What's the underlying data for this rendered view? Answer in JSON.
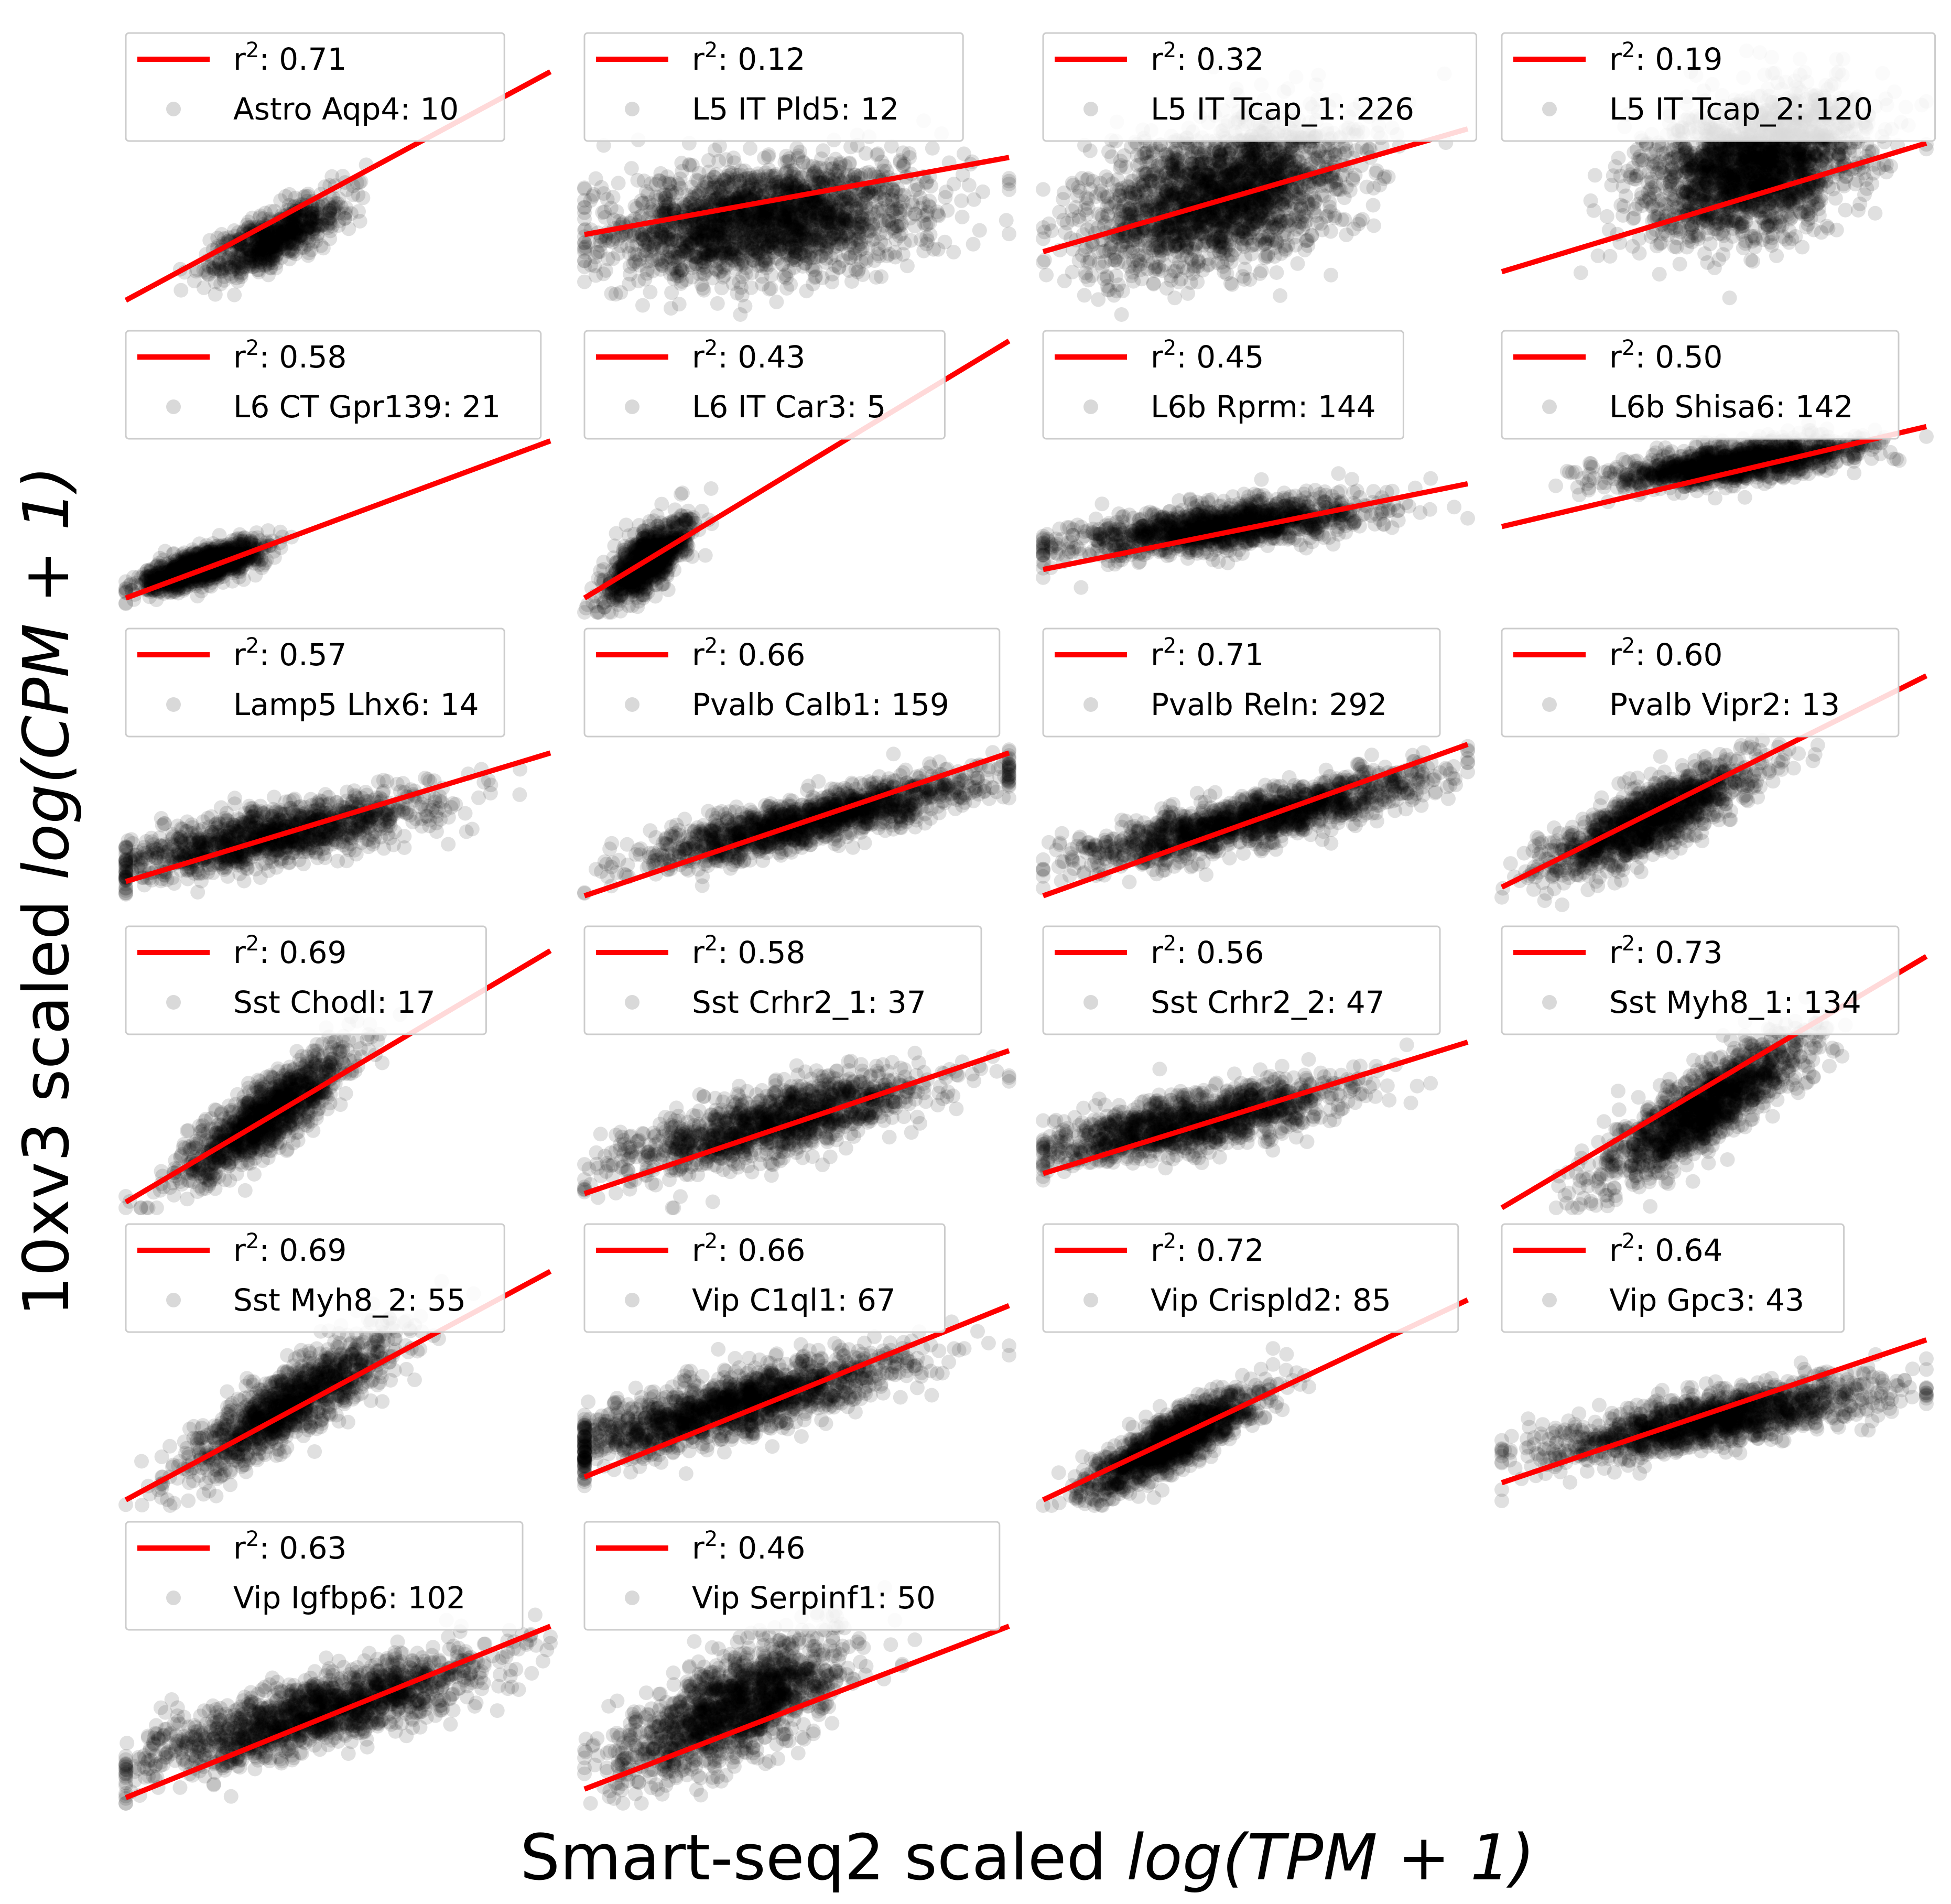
{
  "figure": {
    "xlabel_main": "Smart-seq2 scaled ",
    "xlabel_math": "log(TPM + 1)",
    "ylabel_main": "10xv3 scaled ",
    "ylabel_math": "log(CPM + 1)",
    "line_color": "#ff0000",
    "point_color": "#000000",
    "point_alpha": 0.12
  },
  "chart_data": [
    {
      "type": "scatter",
      "cell_type": "Astro Aqp4",
      "n": "10",
      "r2": "0.71",
      "legend_label": "Astro Aqp4: 10",
      "fit_line": {
        "y_start": 0.05,
        "y_end": 0.85
      },
      "cloud": {
        "cx": 0.35,
        "cy": 0.27,
        "sx": 0.08,
        "sy": 0.07,
        "rho": 0.75,
        "count": 700
      }
    },
    {
      "type": "scatter",
      "cell_type": "L5 IT Pld5",
      "n": "12",
      "r2": "0.12",
      "legend_label": "L5 IT Pld5: 12",
      "fit_line": {
        "y_start": 0.28,
        "y_end": 0.55
      },
      "cloud": {
        "cx": 0.42,
        "cy": 0.33,
        "sx": 0.18,
        "sy": 0.1,
        "rho": 0.25,
        "count": 2200
      }
    },
    {
      "type": "scatter",
      "cell_type": "L5 IT Tcap_1",
      "n": "226",
      "r2": "0.32",
      "legend_label": "L5 IT Tcap_1: 226",
      "fit_line": {
        "y_start": 0.22,
        "y_end": 0.65
      },
      "cloud": {
        "cx": 0.42,
        "cy": 0.42,
        "sx": 0.15,
        "sy": 0.13,
        "rho": 0.4,
        "count": 2200
      }
    },
    {
      "type": "scatter",
      "cell_type": "L5 IT Tcap_2",
      "n": "120",
      "r2": "0.19",
      "legend_label": "L5 IT Tcap_2: 120",
      "fit_line": {
        "y_start": 0.15,
        "y_end": 0.6
      },
      "cloud": {
        "cx": 0.6,
        "cy": 0.52,
        "sx": 0.13,
        "sy": 0.13,
        "rho": 0.35,
        "count": 2200
      }
    },
    {
      "type": "scatter",
      "cell_type": "L6 CT Gpr139",
      "n": "21",
      "r2": "0.58",
      "legend_label": "L6 CT Gpr139: 21",
      "fit_line": {
        "y_start": 0.05,
        "y_end": 0.6
      },
      "cloud": {
        "cx": 0.18,
        "cy": 0.16,
        "sx": 0.07,
        "sy": 0.04,
        "rho": 0.7,
        "count": 1200
      }
    },
    {
      "type": "scatter",
      "cell_type": "L6 IT Car3",
      "n": "5",
      "r2": "0.43",
      "legend_label": "L6 IT Car3: 5",
      "fit_line": {
        "y_start": 0.05,
        "y_end": 0.95
      },
      "cloud": {
        "cx": 0.15,
        "cy": 0.18,
        "sx": 0.05,
        "sy": 0.07,
        "rho": 0.7,
        "count": 900
      }
    },
    {
      "type": "scatter",
      "cell_type": "L6b Rprm",
      "n": "144",
      "r2": "0.45",
      "legend_label": "L6b Rprm: 144",
      "fit_line": {
        "y_start": 0.15,
        "y_end": 0.45
      },
      "cloud": {
        "cx": 0.42,
        "cy": 0.3,
        "sx": 0.18,
        "sy": 0.05,
        "rho": 0.6,
        "count": 1400
      }
    },
    {
      "type": "scatter",
      "cell_type": "L6b Shisa6",
      "n": "142",
      "r2": "0.50",
      "legend_label": "L6b Shisa6: 142",
      "fit_line": {
        "y_start": 0.3,
        "y_end": 0.65
      },
      "cloud": {
        "cx": 0.55,
        "cy": 0.52,
        "sx": 0.14,
        "sy": 0.04,
        "rho": 0.6,
        "count": 1300
      }
    },
    {
      "type": "scatter",
      "cell_type": "Lamp5 Lhx6",
      "n": "14",
      "r2": "0.57",
      "legend_label": "Lamp5 Lhx6: 14",
      "fit_line": {
        "y_start": 0.1,
        "y_end": 0.55
      },
      "cloud": {
        "cx": 0.35,
        "cy": 0.26,
        "sx": 0.18,
        "sy": 0.07,
        "rho": 0.7,
        "count": 1300
      }
    },
    {
      "type": "scatter",
      "cell_type": "Pvalb Calb1",
      "n": "159",
      "r2": "0.66",
      "legend_label": "Pvalb Calb1: 159",
      "fit_line": {
        "y_start": 0.05,
        "y_end": 0.55
      },
      "cloud": {
        "cx": 0.55,
        "cy": 0.32,
        "sx": 0.2,
        "sy": 0.08,
        "rho": 0.85,
        "count": 1500
      }
    },
    {
      "type": "scatter",
      "cell_type": "Pvalb Reln",
      "n": "292",
      "r2": "0.71",
      "legend_label": "Pvalb Reln: 292",
      "fit_line": {
        "y_start": 0.05,
        "y_end": 0.58
      },
      "cloud": {
        "cx": 0.5,
        "cy": 0.32,
        "sx": 0.2,
        "sy": 0.08,
        "rho": 0.85,
        "count": 1500
      }
    },
    {
      "type": "scatter",
      "cell_type": "Pvalb Vipr2",
      "n": "13",
      "r2": "0.60",
      "legend_label": "Pvalb Vipr2: 13",
      "fit_line": {
        "y_start": 0.08,
        "y_end": 0.82
      },
      "cloud": {
        "cx": 0.35,
        "cy": 0.32,
        "sx": 0.12,
        "sy": 0.1,
        "rho": 0.8,
        "count": 1300
      }
    },
    {
      "type": "scatter",
      "cell_type": "Sst Chodl",
      "n": "17",
      "r2": "0.69",
      "legend_label": "Sst Chodl: 17",
      "fit_line": {
        "y_start": 0.02,
        "y_end": 0.9
      },
      "cloud": {
        "cx": 0.33,
        "cy": 0.32,
        "sx": 0.1,
        "sy": 0.12,
        "rho": 0.85,
        "count": 1200
      }
    },
    {
      "type": "scatter",
      "cell_type": "Sst Crhr2_1",
      "n": "37",
      "r2": "0.58",
      "legend_label": "Sst Crhr2_1: 37",
      "fit_line": {
        "y_start": 0.05,
        "y_end": 0.55
      },
      "cloud": {
        "cx": 0.45,
        "cy": 0.3,
        "sx": 0.18,
        "sy": 0.09,
        "rho": 0.75,
        "count": 1300
      }
    },
    {
      "type": "scatter",
      "cell_type": "Sst Crhr2_2",
      "n": "47",
      "r2": "0.56",
      "legend_label": "Sst Crhr2_2: 47",
      "fit_line": {
        "y_start": 0.12,
        "y_end": 0.58
      },
      "cloud": {
        "cx": 0.35,
        "cy": 0.3,
        "sx": 0.18,
        "sy": 0.07,
        "rho": 0.7,
        "count": 1300
      }
    },
    {
      "type": "scatter",
      "cell_type": "Sst Myh8_1",
      "n": "134",
      "r2": "0.73",
      "legend_label": "Sst Myh8_1: 134",
      "fit_line": {
        "y_start": 0.0,
        "y_end": 0.88
      },
      "cloud": {
        "cx": 0.48,
        "cy": 0.35,
        "sx": 0.12,
        "sy": 0.13,
        "rho": 0.85,
        "count": 1400
      }
    },
    {
      "type": "scatter",
      "cell_type": "Sst Myh8_2",
      "n": "55",
      "r2": "0.69",
      "legend_label": "Sst Myh8_2: 55",
      "fit_line": {
        "y_start": 0.02,
        "y_end": 0.82
      },
      "cloud": {
        "cx": 0.38,
        "cy": 0.35,
        "sx": 0.12,
        "sy": 0.12,
        "rho": 0.85,
        "count": 1200
      }
    },
    {
      "type": "scatter",
      "cell_type": "Vip C1ql1",
      "n": "67",
      "r2": "0.66",
      "legend_label": "Vip C1ql1: 67",
      "fit_line": {
        "y_start": 0.1,
        "y_end": 0.7
      },
      "cloud": {
        "cx": 0.35,
        "cy": 0.35,
        "sx": 0.2,
        "sy": 0.09,
        "rho": 0.8,
        "count": 1600
      }
    },
    {
      "type": "scatter",
      "cell_type": "Vip Crispld2",
      "n": "85",
      "r2": "0.72",
      "legend_label": "Vip Crispld2: 85",
      "fit_line": {
        "y_start": 0.02,
        "y_end": 0.72
      },
      "cloud": {
        "cx": 0.3,
        "cy": 0.22,
        "sx": 0.1,
        "sy": 0.09,
        "rho": 0.85,
        "count": 1300
      }
    },
    {
      "type": "scatter",
      "cell_type": "Vip Gpc3",
      "n": "43",
      "r2": "0.64",
      "legend_label": "Vip Gpc3: 43",
      "fit_line": {
        "y_start": 0.08,
        "y_end": 0.58
      },
      "cloud": {
        "cx": 0.5,
        "cy": 0.3,
        "sx": 0.2,
        "sy": 0.07,
        "rho": 0.75,
        "count": 1500
      }
    },
    {
      "type": "scatter",
      "cell_type": "Vip Igfbp6",
      "n": "102",
      "r2": "0.63",
      "legend_label": "Vip Igfbp6: 102",
      "fit_line": {
        "y_start": 0.02,
        "y_end": 0.62
      },
      "cloud": {
        "cx": 0.45,
        "cy": 0.32,
        "sx": 0.2,
        "sy": 0.1,
        "rho": 0.8,
        "count": 1600
      }
    },
    {
      "type": "scatter",
      "cell_type": "Vip Serpinf1",
      "n": "50",
      "r2": "0.46",
      "legend_label": "Vip Serpinf1: 50",
      "fit_line": {
        "y_start": 0.05,
        "y_end": 0.62
      },
      "cloud": {
        "cx": 0.35,
        "cy": 0.33,
        "sx": 0.13,
        "sy": 0.12,
        "rho": 0.7,
        "count": 1500
      }
    }
  ]
}
